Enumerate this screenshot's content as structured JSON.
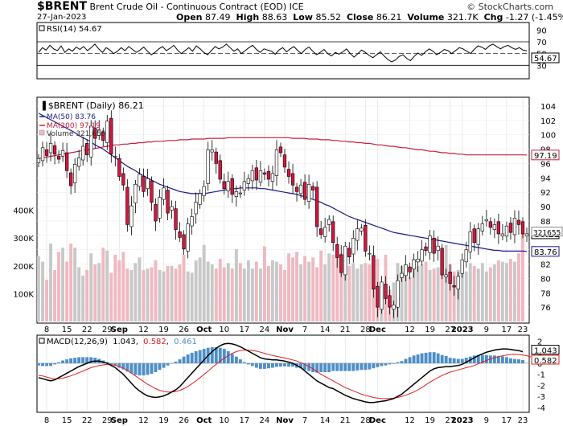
{
  "header": {
    "symbol": "$BRENT",
    "description": "Brent Crude Oil - Continuous Contract (EOD) ICE",
    "date": "27-Jan-2023",
    "watermark": "© StockCharts.com",
    "open_label": "Open",
    "open": "87.49",
    "high_label": "High",
    "high": "88.63",
    "low_label": "Low",
    "low": "85.52",
    "close_label": "Close",
    "close": "86.21",
    "volume_label": "Volume",
    "volume": "321.7K",
    "chg_label": "Chg",
    "chg": "-1.27 (-1.45%)",
    "chg_icon": "down-triangle-icon"
  },
  "colors": {
    "up_candle": "#ffffff",
    "down_candle": "#d8153f",
    "candle_stroke": "#000000",
    "ma50": "#1a1a8c",
    "ma200": "#c81e3c",
    "vol_up": "#c8c8c8",
    "vol_down": "#f0b8c0",
    "macd_line": "#000000",
    "signal_line": "#e02020",
    "hist": "#4d8fc8",
    "rsi_line": "#000000",
    "grid": "#dddddd"
  },
  "chart_data": [
    {
      "type": "line",
      "panel": "RSI",
      "label": "RSI(14) 54.67",
      "last": "54.67",
      "ticks": [
        90,
        70,
        50,
        30
      ],
      "ylim": [
        10,
        100
      ],
      "guides": [
        70,
        50,
        30
      ],
      "values": [
        52,
        60,
        56,
        64,
        58,
        55,
        63,
        52,
        58,
        54,
        61,
        57,
        62,
        55,
        60,
        66,
        58,
        52,
        60,
        56,
        50,
        54,
        60,
        55,
        62,
        57,
        52,
        56,
        61,
        54,
        48,
        52,
        58,
        62,
        55,
        59,
        64,
        56,
        50,
        55,
        60,
        54,
        63,
        58,
        52,
        48,
        55,
        62,
        58,
        61,
        66,
        60,
        54,
        58,
        50,
        55,
        60,
        64,
        57,
        52,
        58,
        56,
        54,
        49,
        56,
        60,
        53,
        58,
        62,
        55,
        50,
        57,
        61,
        54,
        48,
        52,
        57,
        50,
        46,
        52,
        49,
        53,
        58,
        50,
        44,
        50,
        56,
        52,
        47,
        43,
        48,
        53,
        46,
        40,
        36,
        39,
        45,
        48,
        42,
        38,
        45,
        51,
        47,
        53,
        58,
        54,
        48,
        52,
        57,
        55,
        50,
        55,
        60,
        58,
        54,
        50,
        57,
        63,
        61,
        57,
        63,
        66,
        62,
        58,
        62,
        64,
        60,
        57,
        60,
        56,
        54.67
      ]
    },
    {
      "type": "candlestick",
      "panel": "Price",
      "label": "$BRENT (Daily) 86.21",
      "legend": [
        "MA(50) 83.76",
        "MA(200) 97.19",
        "Volume 321,655"
      ],
      "last_close": "86.21",
      "last_ma50": "83.76",
      "last_ma200": "97.19",
      "last_volume": "321655",
      "ylim": [
        74,
        105
      ],
      "ticks": [
        104,
        102,
        100,
        98,
        96,
        94,
        92,
        90,
        88,
        86,
        84,
        82,
        80,
        78,
        76
      ],
      "vol_ticks": [
        "400K",
        "300K",
        "200K",
        "100K"
      ],
      "vol_ticks_values": [
        400000,
        300000,
        200000,
        100000
      ],
      "vol_max": 800000,
      "x_labels": [
        "8",
        "15",
        "22",
        "29",
        "Sep",
        "12",
        "19",
        "26",
        "Oct",
        "10",
        "17",
        "24",
        "Nov",
        "7",
        "14",
        "21",
        "28",
        "Dec",
        "12",
        "19",
        "27",
        "2023",
        "9",
        "17",
        "23"
      ],
      "x_label_index": [
        2,
        7,
        12,
        17,
        20,
        26,
        31,
        36,
        41,
        46,
        51,
        56,
        61,
        66,
        71,
        76,
        81,
        84,
        92,
        97,
        102,
        105,
        111,
        116,
        120
      ],
      "bold_labels": [
        "Sep",
        "Oct",
        "Nov",
        "Dec",
        "2023"
      ],
      "closes": [
        96.7,
        98.2,
        97.1,
        98.8,
        97.3,
        96.6,
        97.8,
        95.0,
        92.9,
        95.9,
        96.8,
        98.4,
        97.2,
        101.2,
        99.5,
        100.7,
        99.2,
        101.9,
        97.3,
        97.0,
        94.2,
        93.0,
        87.5,
        90.1,
        93.1,
        94.5,
        92.1,
        93.9,
        90.6,
        88.0,
        91.3,
        92.6,
        89.1,
        90.0,
        86.8,
        85.7,
        84.1,
        87.6,
        88.6,
        90.6,
        91.8,
        92.8,
        97.9,
        97.9,
        96.0,
        93.8,
        92.5,
        93.5,
        91.7,
        92.1,
        91.9,
        93.5,
        93.9,
        95.0,
        93.7,
        95.0,
        94.5,
        93.8,
        94.6,
        97.9,
        97.5,
        95.5,
        94.2,
        93.0,
        92.1,
        93.0,
        91.0,
        93.1,
        92.3,
        87.2,
        86.1,
        87.1,
        88.2,
        85.0,
        82.9,
        80.8,
        84.5,
        83.0,
        85.6,
        86.9,
        87.0,
        83.8,
        83.5,
        78.5,
        76.0,
        79.5,
        77.2,
        76.0,
        76.3,
        79.7,
        80.7,
        81.9,
        80.9,
        82.6,
        82.7,
        84.0,
        83.9,
        85.9,
        83.5,
        84.5,
        80.5,
        80.5,
        79.3,
        78.8,
        80.3,
        82.6,
        84.0,
        86.5,
        85.0,
        86.9,
        87.6,
        88.2,
        87.1,
        87.5,
        86.2,
        86.2,
        87.3,
        86.4,
        88.4,
        87.5,
        86.2,
        86.21
      ],
      "ma50": [
        103.0,
        102.7,
        102.4,
        102.1,
        101.8,
        101.5,
        101.2,
        100.9,
        100.6,
        100.3,
        99.9,
        99.6,
        99.3,
        99.0,
        98.6,
        98.3,
        98.0,
        97.6,
        97.2,
        96.8,
        96.4,
        96.0,
        95.6,
        95.3,
        95.0,
        94.6,
        94.3,
        94.0,
        93.7,
        93.4,
        93.1,
        92.9,
        92.7,
        92.5,
        92.3,
        92.1,
        92.0,
        91.9,
        91.8,
        91.8,
        91.8,
        91.8,
        91.9,
        92.0,
        92.1,
        92.2,
        92.3,
        92.4,
        92.5,
        92.5,
        92.6,
        92.6,
        92.6,
        92.6,
        92.6,
        92.5,
        92.5,
        92.4,
        92.3,
        92.2,
        92.1,
        92.0,
        91.9,
        91.8,
        91.7,
        91.5,
        91.4,
        91.2,
        91.0,
        90.8,
        90.6,
        90.3,
        90.1,
        89.8,
        89.5,
        89.2,
        88.9,
        88.6,
        88.4,
        88.2,
        88.0,
        87.8,
        87.6,
        87.4,
        87.2,
        87.0,
        86.8,
        86.6,
        86.4,
        86.3,
        86.2,
        86.1,
        86.0,
        85.9,
        85.8,
        85.7,
        85.6,
        85.5,
        85.4,
        85.3,
        85.2,
        85.1,
        85.0,
        84.9,
        84.8,
        84.7,
        84.6,
        84.5,
        84.4,
        84.3,
        84.2,
        84.1,
        84.0,
        83.9,
        83.9,
        83.8,
        83.8,
        83.8,
        83.8,
        83.8,
        83.8,
        83.76
      ],
      "ma200": [
        96.7,
        96.8,
        96.9,
        97.0,
        97.1,
        97.2,
        97.3,
        97.4,
        97.5,
        97.6,
        97.7,
        97.8,
        97.9,
        98.0,
        98.1,
        98.2,
        98.3,
        98.4,
        98.5,
        98.6,
        98.6,
        98.7,
        98.7,
        98.8,
        98.8,
        98.9,
        98.9,
        99.0,
        99.0,
        99.1,
        99.1,
        99.1,
        99.2,
        99.2,
        99.2,
        99.3,
        99.3,
        99.3,
        99.4,
        99.4,
        99.4,
        99.4,
        99.5,
        99.5,
        99.5,
        99.5,
        99.5,
        99.6,
        99.6,
        99.6,
        99.6,
        99.6,
        99.6,
        99.6,
        99.6,
        99.6,
        99.6,
        99.6,
        99.6,
        99.6,
        99.6,
        99.6,
        99.6,
        99.5,
        99.5,
        99.5,
        99.5,
        99.4,
        99.4,
        99.4,
        99.3,
        99.3,
        99.3,
        99.2,
        99.2,
        99.1,
        99.1,
        99.0,
        99.0,
        98.9,
        98.9,
        98.8,
        98.8,
        98.7,
        98.6,
        98.6,
        98.5,
        98.4,
        98.4,
        98.3,
        98.2,
        98.2,
        98.1,
        98.0,
        97.9,
        97.9,
        97.8,
        97.7,
        97.7,
        97.6,
        97.5,
        97.5,
        97.4,
        97.4,
        97.3,
        97.3,
        97.2,
        97.2,
        97.2,
        97.2,
        97.2,
        97.2,
        97.2,
        97.2,
        97.2,
        97.2,
        97.2,
        97.2,
        97.2,
        97.2,
        97.2,
        97.19
      ],
      "volumes": [
        235000,
        215000,
        150000,
        280000,
        185000,
        250000,
        265000,
        215000,
        280000,
        265000,
        195000,
        165000,
        185000,
        245000,
        205000,
        210000,
        265000,
        255000,
        175000,
        240000,
        220000,
        250000,
        190000,
        185000,
        210000,
        230000,
        185000,
        190000,
        195000,
        220000,
        185000,
        180000,
        200000,
        200000,
        190000,
        205000,
        240000,
        180000,
        175000,
        220000,
        230000,
        275000,
        215000,
        205000,
        190000,
        225000,
        195000,
        210000,
        190000,
        260000,
        210000,
        190000,
        220000,
        190000,
        215000,
        190000,
        270000,
        200000,
        220000,
        215000,
        205000,
        185000,
        245000,
        230000,
        250000,
        205000,
        235000,
        215000,
        230000,
        195000,
        255000,
        205000,
        245000,
        240000,
        280000,
        245000,
        250000,
        200000,
        210000,
        190000,
        205000,
        210000,
        205000,
        135000,
        225000,
        140000,
        240000,
        115000,
        140000,
        210000,
        200000,
        190000,
        160000,
        225000,
        200000,
        205000,
        215000,
        185000,
        190000,
        195000,
        230000,
        275000,
        205000,
        180000,
        185000,
        200000,
        180000,
        210000,
        200000,
        190000,
        210000,
        180000,
        195000,
        205000,
        220000,
        215000,
        210000,
        225000,
        215000,
        245000,
        321655
      ]
    },
    {
      "type": "line",
      "panel": "MACD",
      "label": "MACD(12,26,9)",
      "macd_value": "1.043",
      "signal_value": "0.582",
      "hist_value": "0.461",
      "ticks": [
        2,
        1,
        0,
        -1,
        -2,
        -3,
        -4
      ],
      "ylim": [
        -4.3,
        2.4
      ],
      "x_labels": [
        "8",
        "15",
        "22",
        "29",
        "Sep",
        "12",
        "19",
        "26",
        "Oct",
        "10",
        "17",
        "24",
        "Nov",
        "7",
        "14",
        "21",
        "28",
        "Dec",
        "12",
        "19",
        "27",
        "2023",
        "9",
        "17",
        "23"
      ],
      "macd": [
        -1.3,
        -1.4,
        -1.5,
        -1.6,
        -1.5,
        -1.3,
        -1.1,
        -0.9,
        -0.7,
        -0.5,
        -0.3,
        -0.15,
        0.0,
        0.15,
        0.2,
        0.2,
        0.1,
        0.0,
        -0.2,
        -0.4,
        -0.7,
        -1.0,
        -1.4,
        -1.8,
        -2.2,
        -2.5,
        -2.75,
        -2.95,
        -3.05,
        -3.1,
        -3.05,
        -2.95,
        -2.8,
        -2.6,
        -2.4,
        -2.1,
        -1.7,
        -1.3,
        -0.9,
        -0.5,
        -0.1,
        0.3,
        0.7,
        1.05,
        1.35,
        1.6,
        1.75,
        1.8,
        1.75,
        1.65,
        1.5,
        1.3,
        1.1,
        0.9,
        0.7,
        0.5,
        0.4,
        0.35,
        0.3,
        0.3,
        0.25,
        0.2,
        0.1,
        0.0,
        -0.2,
        -0.4,
        -0.7,
        -1.0,
        -1.3,
        -1.6,
        -1.8,
        -2.0,
        -2.2,
        -2.3,
        -2.5,
        -2.7,
        -2.9,
        -3.05,
        -3.2,
        -3.3,
        -3.4,
        -3.5,
        -3.55,
        -3.55,
        -3.5,
        -3.45,
        -3.4,
        -3.3,
        -3.2,
        -3.0,
        -2.8,
        -2.5,
        -2.2,
        -1.9,
        -1.6,
        -1.3,
        -1.0,
        -0.7,
        -0.5,
        -0.4,
        -0.35,
        -0.3,
        -0.3,
        -0.25,
        -0.2,
        -0.1,
        0.1,
        0.3,
        0.5,
        0.7,
        0.85,
        1.0,
        1.1,
        1.2,
        1.25,
        1.3,
        1.3,
        1.25,
        1.2,
        1.15,
        1.043
      ],
      "signal": [
        -1.1,
        -1.15,
        -1.25,
        -1.35,
        -1.4,
        -1.4,
        -1.35,
        -1.25,
        -1.15,
        -1.0,
        -0.85,
        -0.7,
        -0.55,
        -0.4,
        -0.3,
        -0.2,
        -0.15,
        -0.1,
        -0.12,
        -0.18,
        -0.3,
        -0.45,
        -0.65,
        -0.9,
        -1.15,
        -1.4,
        -1.65,
        -1.9,
        -2.1,
        -2.3,
        -2.45,
        -2.55,
        -2.6,
        -2.6,
        -2.55,
        -2.45,
        -2.3,
        -2.1,
        -1.85,
        -1.6,
        -1.3,
        -1.0,
        -0.7,
        -0.4,
        -0.1,
        0.2,
        0.45,
        0.7,
        0.9,
        1.05,
        1.15,
        1.2,
        1.2,
        1.15,
        1.1,
        1.0,
        0.9,
        0.8,
        0.7,
        0.62,
        0.55,
        0.48,
        0.4,
        0.3,
        0.2,
        0.05,
        -0.1,
        -0.3,
        -0.5,
        -0.75,
        -1.0,
        -1.2,
        -1.4,
        -1.6,
        -1.8,
        -2.0,
        -2.2,
        -2.35,
        -2.5,
        -2.65,
        -2.8,
        -2.9,
        -3.0,
        -3.1,
        -3.15,
        -3.2,
        -3.2,
        -3.2,
        -3.15,
        -3.1,
        -3.0,
        -2.9,
        -2.75,
        -2.6,
        -2.4,
        -2.2,
        -1.95,
        -1.7,
        -1.5,
        -1.3,
        -1.1,
        -0.95,
        -0.8,
        -0.7,
        -0.6,
        -0.5,
        -0.4,
        -0.3,
        -0.2,
        -0.05,
        0.1,
        0.25,
        0.4,
        0.5,
        0.6,
        0.68,
        0.75,
        0.8,
        0.82,
        0.8,
        0.75,
        0.68,
        0.582
      ]
    }
  ]
}
